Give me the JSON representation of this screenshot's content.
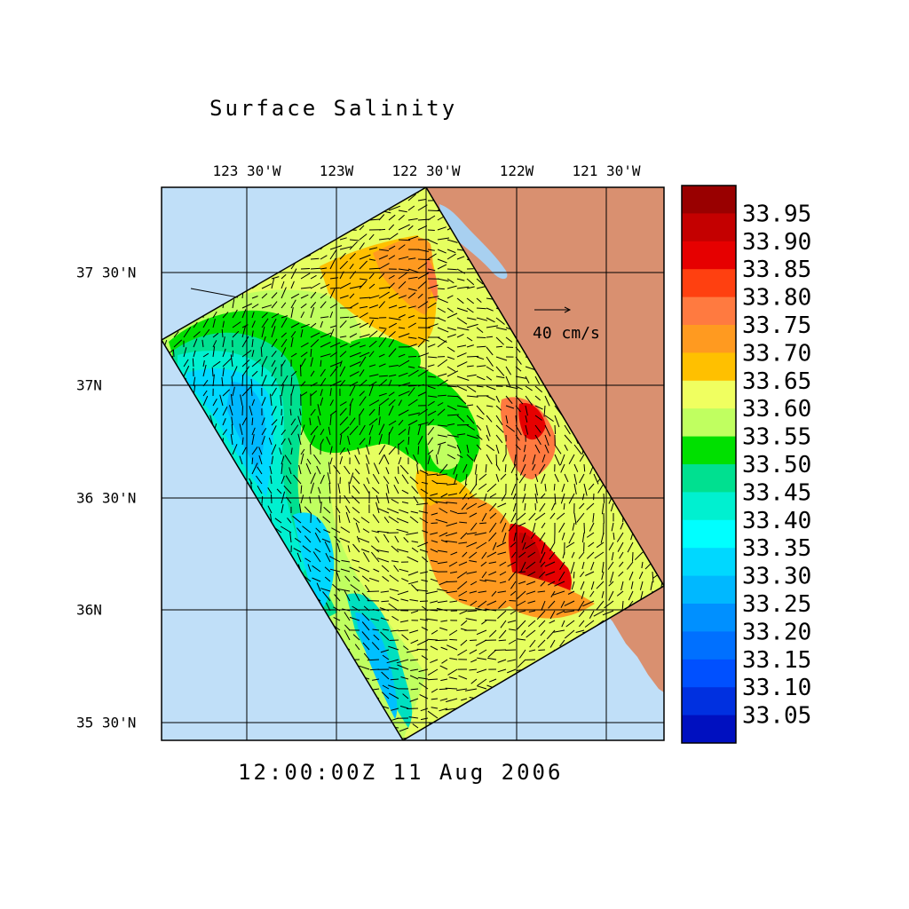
{
  "title": "Surface Salinity",
  "datetime": "12:00:00Z  11 Aug 2006",
  "lon_ticks": [
    "123 30'W",
    "123W",
    "122 30'W",
    "122W",
    "121 30'W"
  ],
  "lat_ticks": [
    "37 30'N",
    "37N",
    "36 30'N",
    "36N",
    "35 30'N"
  ],
  "reference_vector": "40 cm/s",
  "colorbar": {
    "labels": [
      "33.95",
      "33.90",
      "33.85",
      "33.80",
      "33.75",
      "33.70",
      "33.65",
      "33.60",
      "33.55",
      "33.50",
      "33.45",
      "33.40",
      "33.35",
      "33.30",
      "33.25",
      "33.20",
      "33.15",
      "33.10",
      "33.05"
    ],
    "colors": [
      "#990000",
      "#c40000",
      "#e60000",
      "#ff4010",
      "#ff7a40",
      "#ff9a20",
      "#ffc000",
      "#f0ff60",
      "#c0ff60",
      "#00e000",
      "#00e090",
      "#00f0d0",
      "#00ffff",
      "#00d8ff",
      "#00b8ff",
      "#0090ff",
      "#0070ff",
      "#0050ff",
      "#0030e0",
      "#0010c0"
    ]
  },
  "colors": {
    "ocean": "#c0dff8",
    "land": "#d99070",
    "bay": "#a8d0f0"
  }
}
